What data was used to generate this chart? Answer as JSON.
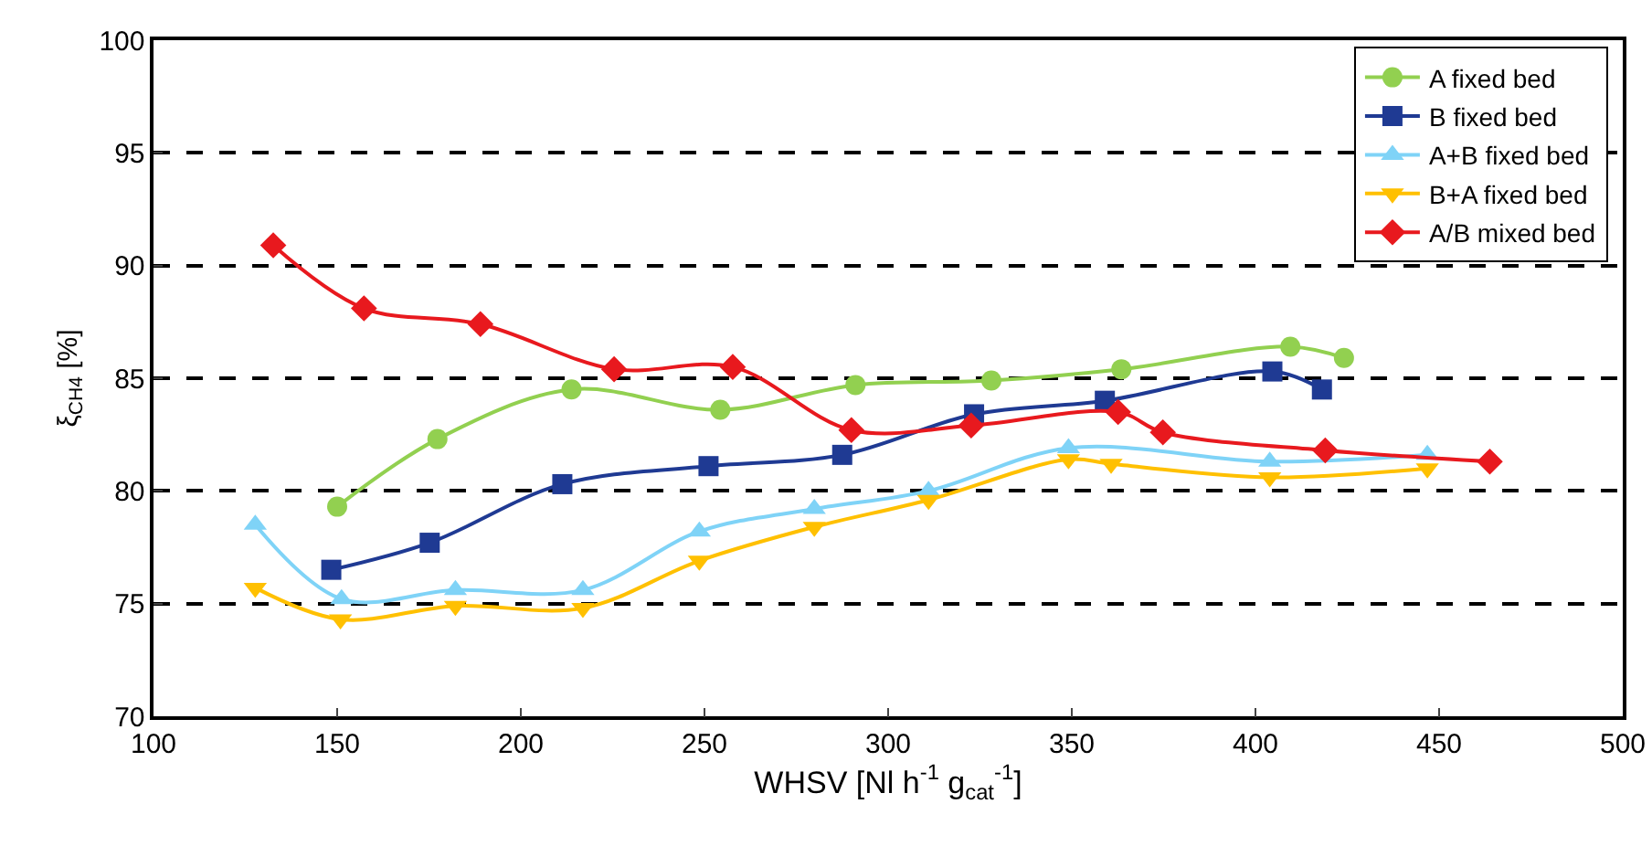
{
  "chart_data": {
    "type": "line",
    "xlabel": "WHSV [Nl h$^{-1}$ g$_{cat}$$^{-1}$]",
    "ylabel": "ξ$_{CH4}$ [%]",
    "xlim": [
      100,
      500
    ],
    "xticks": [
      100,
      150,
      200,
      250,
      300,
      350,
      400,
      450,
      500
    ],
    "ylim": [
      70,
      100
    ],
    "yticks": [
      70,
      75,
      80,
      85,
      90,
      95,
      100
    ],
    "grid": "y",
    "legend": "top right",
    "line_style": "solid",
    "series": [
      {
        "name": "A fixed bed",
        "color": "#92d050",
        "marker": "circle",
        "x": [
          150.0,
          177.3,
          213.8,
          254.3,
          291.1,
          328.1,
          363.5,
          409.5,
          424.1
        ],
        "values": [
          79.3,
          82.3,
          84.5,
          83.6,
          84.7,
          84.9,
          85.4,
          86.4,
          85.9
        ]
      },
      {
        "name": "B fixed bed",
        "color": "#1f3a93",
        "marker": "square",
        "x": [
          148.4,
          175.2,
          211.3,
          251.1,
          287.5,
          323.4,
          359.0,
          404.6,
          418.1
        ],
        "values": [
          76.5,
          77.7,
          80.3,
          81.1,
          81.6,
          83.4,
          84.0,
          85.3,
          84.5
        ]
      },
      {
        "name": "A+B fixed bed",
        "color": "#7fd3f7",
        "marker": "triangle",
        "x": [
          127.7,
          151.2,
          182.2,
          216.9,
          248.6,
          279.9,
          311.0,
          349.1,
          403.9,
          446.8
        ],
        "values": [
          78.5,
          75.2,
          75.6,
          75.6,
          78.2,
          79.2,
          80.0,
          81.9,
          81.3,
          81.6
        ]
      },
      {
        "name": "B+A fixed bed",
        "color": "#ffc000",
        "marker": "triangle-down",
        "x": [
          127.7,
          150.9,
          182.2,
          216.9,
          248.6,
          279.9,
          311.0,
          349.1,
          360.7,
          403.9,
          446.8
        ],
        "values": [
          75.7,
          74.3,
          74.9,
          74.8,
          76.9,
          78.4,
          79.6,
          81.4,
          81.2,
          80.6,
          81.0
        ]
      },
      {
        "name": "A/B mixed bed",
        "color": "#e8191e",
        "marker": "diamond",
        "x": [
          132.6,
          157.3,
          189.0,
          225.4,
          257.7,
          290.0,
          322.6,
          362.6,
          374.8,
          419.0,
          463.8
        ],
        "values": [
          90.9,
          88.1,
          87.4,
          85.4,
          85.5,
          82.7,
          82.9,
          83.5,
          82.6,
          81.8,
          81.3
        ]
      }
    ]
  }
}
